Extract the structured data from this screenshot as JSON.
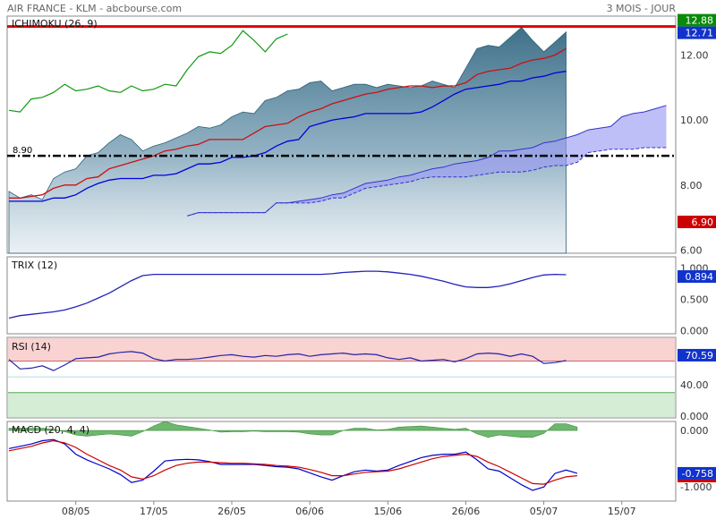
{
  "header": {
    "left_title": "AIR FRANCE - KLM - abcbourse.com",
    "right_title": "3 MOIS - JOUR"
  },
  "colors": {
    "price_fill": "#4a7f96",
    "cloud_fill": "#9c9cf5",
    "kijun": "#cc1111",
    "tenkan": "#0000dd",
    "chikou": "#119911",
    "resistance": "#dd0000",
    "trix": "#2222bb",
    "rsi_line": "#2222aa",
    "macd_line": "#0000cc",
    "macd_signal": "#cc0000",
    "macd_hist": "#55aa55"
  },
  "chart_data": [
    {
      "type": "area",
      "name": "price",
      "legend": "ICHIMOKU (26, 9)",
      "ylim": [
        5.9,
        13.2
      ],
      "yticks": [
        "12.00",
        "10.00",
        "8.00",
        "6.00"
      ],
      "xticks": [
        {
          "label": "08/05",
          "index": 6
        },
        {
          "label": "17/05",
          "index": 13
        },
        {
          "label": "26/05",
          "index": 20
        },
        {
          "label": "06/06",
          "index": 27
        },
        {
          "label": "15/06",
          "index": 34
        },
        {
          "label": "26/06",
          "index": 41
        },
        {
          "label": "05/07",
          "index": 48
        },
        {
          "label": "15/07",
          "index": 55
        }
      ],
      "n_slots": 60,
      "close": [
        7.8,
        7.6,
        7.7,
        7.55,
        8.2,
        8.4,
        8.5,
        8.9,
        9.0,
        9.3,
        9.55,
        9.4,
        9.05,
        9.2,
        9.3,
        9.45,
        9.6,
        9.8,
        9.75,
        9.85,
        10.1,
        10.25,
        10.2,
        10.6,
        10.7,
        10.9,
        10.95,
        11.15,
        11.2,
        10.9,
        11.0,
        11.1,
        11.1,
        11.0,
        11.1,
        11.05,
        11.0,
        11.05,
        11.2,
        11.1,
        11.0,
        11.6,
        12.2,
        12.3,
        12.25,
        12.55,
        12.85,
        12.45,
        12.1,
        12.4,
        12.71
      ],
      "kijun": [
        7.6,
        7.6,
        7.65,
        7.7,
        7.9,
        8.0,
        8.0,
        8.2,
        8.25,
        8.5,
        8.6,
        8.7,
        8.8,
        8.9,
        9.05,
        9.1,
        9.2,
        9.25,
        9.4,
        9.4,
        9.4,
        9.4,
        9.6,
        9.8,
        9.85,
        9.9,
        10.1,
        10.25,
        10.35,
        10.5,
        10.6,
        10.7,
        10.8,
        10.85,
        10.95,
        11.0,
        11.05,
        11.05,
        11.0,
        11.05,
        11.05,
        11.15,
        11.4,
        11.5,
        11.55,
        11.6,
        11.75,
        11.85,
        11.9,
        12.0,
        12.2
      ],
      "tenkan": [
        7.5,
        7.5,
        7.5,
        7.5,
        7.6,
        7.6,
        7.7,
        7.9,
        8.05,
        8.15,
        8.2,
        8.2,
        8.2,
        8.3,
        8.3,
        8.35,
        8.5,
        8.65,
        8.65,
        8.7,
        8.85,
        8.85,
        8.9,
        9.0,
        9.2,
        9.35,
        9.4,
        9.8,
        9.9,
        10.0,
        10.05,
        10.1,
        10.2,
        10.2,
        10.2,
        10.2,
        10.2,
        10.25,
        10.4,
        10.6,
        10.8,
        10.95,
        11.0,
        11.05,
        11.1,
        11.2,
        11.2,
        11.3,
        11.35,
        11.45,
        11.5
      ],
      "chikou": [
        10.3,
        10.25,
        10.65,
        10.7,
        10.85,
        11.1,
        10.9,
        10.95,
        11.05,
        10.9,
        10.85,
        11.05,
        10.9,
        10.95,
        11.1,
        11.05,
        11.55,
        11.95,
        12.1,
        12.05,
        12.3,
        12.75,
        12.45,
        12.1,
        12.5,
        12.65
      ],
      "cloud_start": 16,
      "cloud_a": [
        7.05,
        7.15,
        7.15,
        7.15,
        7.15,
        7.15,
        7.15,
        7.15,
        7.45,
        7.45,
        7.5,
        7.55,
        7.6,
        7.7,
        7.75,
        7.9,
        8.05,
        8.1,
        8.15,
        8.25,
        8.3,
        8.4,
        8.5,
        8.55,
        8.65,
        8.7,
        8.75,
        8.85,
        9.05,
        9.05,
        9.1,
        9.15,
        9.3,
        9.35,
        9.45,
        9.55,
        9.7,
        9.75,
        9.8,
        10.1,
        10.2,
        10.25,
        10.35,
        10.45
      ],
      "cloud_b": [
        7.05,
        7.15,
        7.15,
        7.15,
        7.15,
        7.15,
        7.15,
        7.15,
        7.45,
        7.45,
        7.45,
        7.45,
        7.5,
        7.6,
        7.6,
        7.75,
        7.9,
        7.95,
        8.0,
        8.05,
        8.1,
        8.2,
        8.25,
        8.25,
        8.25,
        8.25,
        8.3,
        8.35,
        8.4,
        8.4,
        8.4,
        8.45,
        8.55,
        8.6,
        8.6,
        8.7,
        9.0,
        9.05,
        9.1,
        9.1,
        9.1,
        9.15,
        9.15,
        9.15
      ],
      "resistance": 12.88,
      "resistance_label": "12.88",
      "support": 8.9,
      "support_label": "8.90",
      "current_value_label": "12.71",
      "cloud_value_label": "6.90"
    },
    {
      "type": "line",
      "name": "trix",
      "legend": "TRIX (12)",
      "ylim": [
        -0.05,
        1.18
      ],
      "yticks": [
        "1.000",
        "0.500",
        "0.000"
      ],
      "values": [
        0.2,
        0.24,
        0.26,
        0.28,
        0.3,
        0.33,
        0.38,
        0.44,
        0.52,
        0.6,
        0.7,
        0.8,
        0.88,
        0.9,
        0.9,
        0.9,
        0.9,
        0.9,
        0.9,
        0.9,
        0.9,
        0.9,
        0.9,
        0.9,
        0.9,
        0.9,
        0.9,
        0.9,
        0.9,
        0.91,
        0.93,
        0.94,
        0.95,
        0.95,
        0.94,
        0.92,
        0.9,
        0.87,
        0.83,
        0.79,
        0.74,
        0.7,
        0.69,
        0.69,
        0.71,
        0.75,
        0.8,
        0.85,
        0.89,
        0.9,
        0.894
      ],
      "current_value_label": "0.894"
    },
    {
      "type": "line",
      "name": "rsi",
      "legend": "RSI (14)",
      "ylim": [
        -2,
        100
      ],
      "yticks": [
        "40.00",
        "0.000"
      ],
      "overbought": 70,
      "oversold": 30,
      "values": [
        72,
        60,
        61,
        64,
        58,
        65,
        73,
        74,
        75,
        79,
        81,
        82,
        80,
        73,
        70,
        72,
        72,
        73,
        75,
        77,
        78,
        76,
        75,
        77,
        76,
        78,
        79,
        76,
        78,
        79,
        80,
        78,
        79,
        78,
        74,
        72,
        74,
        70,
        71,
        72,
        69,
        73,
        79,
        80,
        79,
        76,
        79,
        76,
        67,
        68,
        70.59
      ],
      "current_value_label": "70.59"
    },
    {
      "type": "line",
      "name": "macd",
      "legend": "MACD (20, 4, 4)",
      "ylim": [
        -1.25,
        0.16
      ],
      "yticks": [
        "0.000",
        "-1.000"
      ],
      "macd": [
        -0.32,
        -0.28,
        -0.24,
        -0.18,
        -0.16,
        -0.24,
        -0.42,
        -0.52,
        -0.6,
        -0.68,
        -0.78,
        -0.92,
        -0.88,
        -0.72,
        -0.54,
        -0.52,
        -0.51,
        -0.52,
        -0.55,
        -0.6,
        -0.6,
        -0.6,
        -0.6,
        -0.62,
        -0.64,
        -0.65,
        -0.68,
        -0.75,
        -0.82,
        -0.88,
        -0.8,
        -0.73,
        -0.7,
        -0.72,
        -0.7,
        -0.62,
        -0.55,
        -0.48,
        -0.44,
        -0.42,
        -0.42,
        -0.38,
        -0.52,
        -0.68,
        -0.72,
        -0.84,
        -0.96,
        -1.06,
        -1.0,
        -0.76,
        -0.7,
        -0.758
      ],
      "signal": [
        -0.36,
        -0.32,
        -0.28,
        -0.22,
        -0.18,
        -0.22,
        -0.3,
        -0.42,
        -0.52,
        -0.62,
        -0.7,
        -0.82,
        -0.86,
        -0.8,
        -0.7,
        -0.62,
        -0.58,
        -0.56,
        -0.56,
        -0.57,
        -0.58,
        -0.58,
        -0.59,
        -0.6,
        -0.62,
        -0.63,
        -0.65,
        -0.69,
        -0.74,
        -0.8,
        -0.8,
        -0.77,
        -0.74,
        -0.73,
        -0.72,
        -0.68,
        -0.62,
        -0.56,
        -0.5,
        -0.46,
        -0.44,
        -0.42,
        -0.46,
        -0.56,
        -0.64,
        -0.74,
        -0.84,
        -0.94,
        -0.95,
        -0.88,
        -0.82,
        -0.8
      ],
      "hist": [
        0.04,
        0.04,
        0.04,
        0.04,
        0.02,
        -0.02,
        -0.08,
        -0.1,
        -0.08,
        -0.06,
        -0.08,
        -0.1,
        -0.02,
        0.08,
        0.16,
        0.1,
        0.07,
        0.04,
        0.01,
        -0.03,
        -0.02,
        -0.02,
        -0.01,
        -0.02,
        -0.02,
        -0.02,
        -0.03,
        -0.06,
        -0.08,
        -0.08,
        0.0,
        0.04,
        0.04,
        0.01,
        0.02,
        0.06,
        0.07,
        0.08,
        0.06,
        0.04,
        0.02,
        0.04,
        -0.06,
        -0.12,
        -0.08,
        -0.1,
        -0.12,
        -0.12,
        -0.05,
        0.12,
        0.12,
        0.06
      ],
      "current_value_label": "-0.758"
    }
  ]
}
